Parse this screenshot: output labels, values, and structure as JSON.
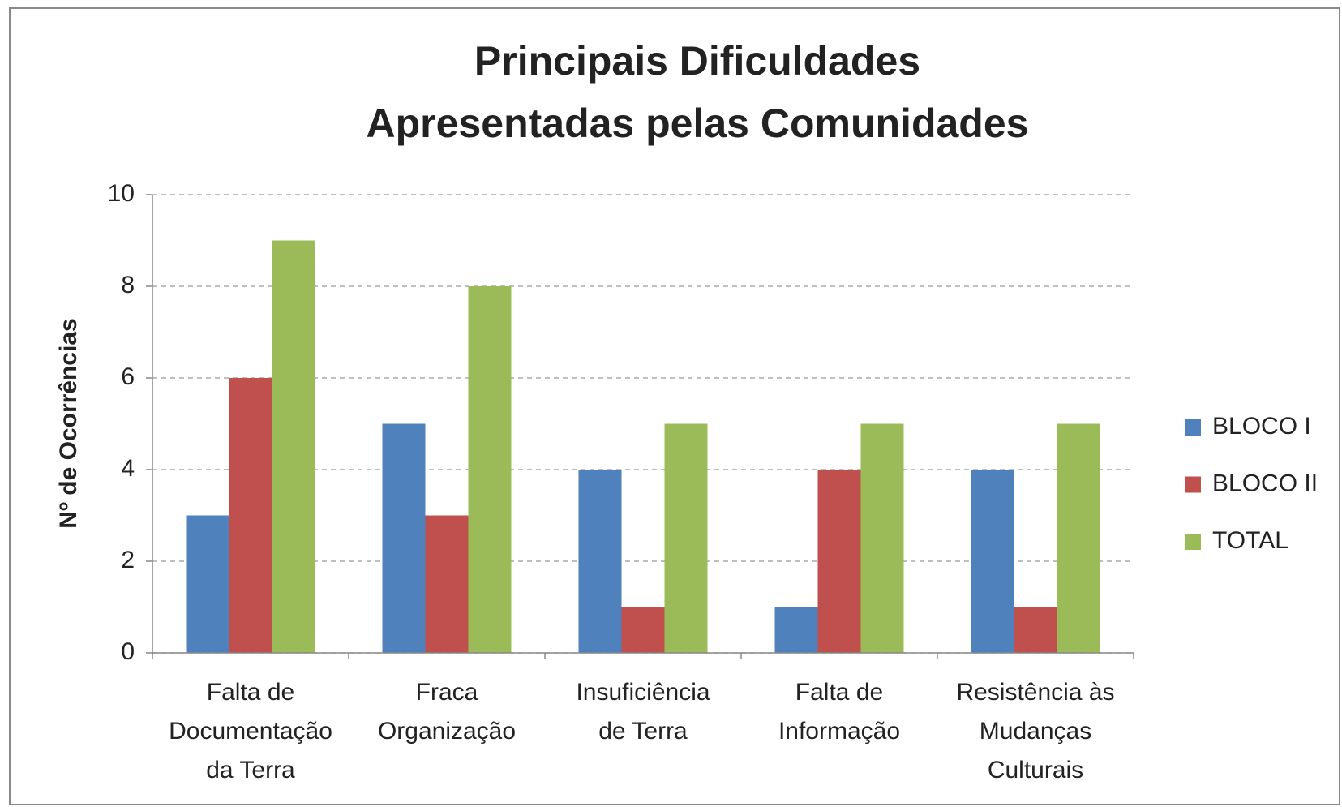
{
  "chart_data": {
    "type": "bar",
    "title": [
      "Principais Dificuldades",
      "Apresentadas pelas Comunidades"
    ],
    "y_label": "Nº de Ocorrências",
    "categories": [
      [
        "Falta de",
        "Documentação",
        "da Terra"
      ],
      [
        "Fraca",
        "Organização"
      ],
      [
        "Insuficiência",
        "de Terra"
      ],
      [
        "Falta de",
        "Informação"
      ],
      [
        "Resistência às",
        "Mudanças",
        "Culturais"
      ]
    ],
    "series": [
      {
        "name": "BLOCO I",
        "color": "#4f81bd",
        "values": [
          3,
          5,
          4,
          1,
          4
        ]
      },
      {
        "name": "BLOCO II",
        "color": "#c0504d",
        "values": [
          6,
          3,
          1,
          4,
          1
        ]
      },
      {
        "name": "TOTAL",
        "color": "#9bbb59",
        "values": [
          9,
          8,
          5,
          5,
          5
        ]
      }
    ],
    "ylim": [
      0,
      10
    ],
    "yticks": [
      0,
      2,
      4,
      6,
      8,
      10
    ],
    "grid": true,
    "legend": "right"
  }
}
